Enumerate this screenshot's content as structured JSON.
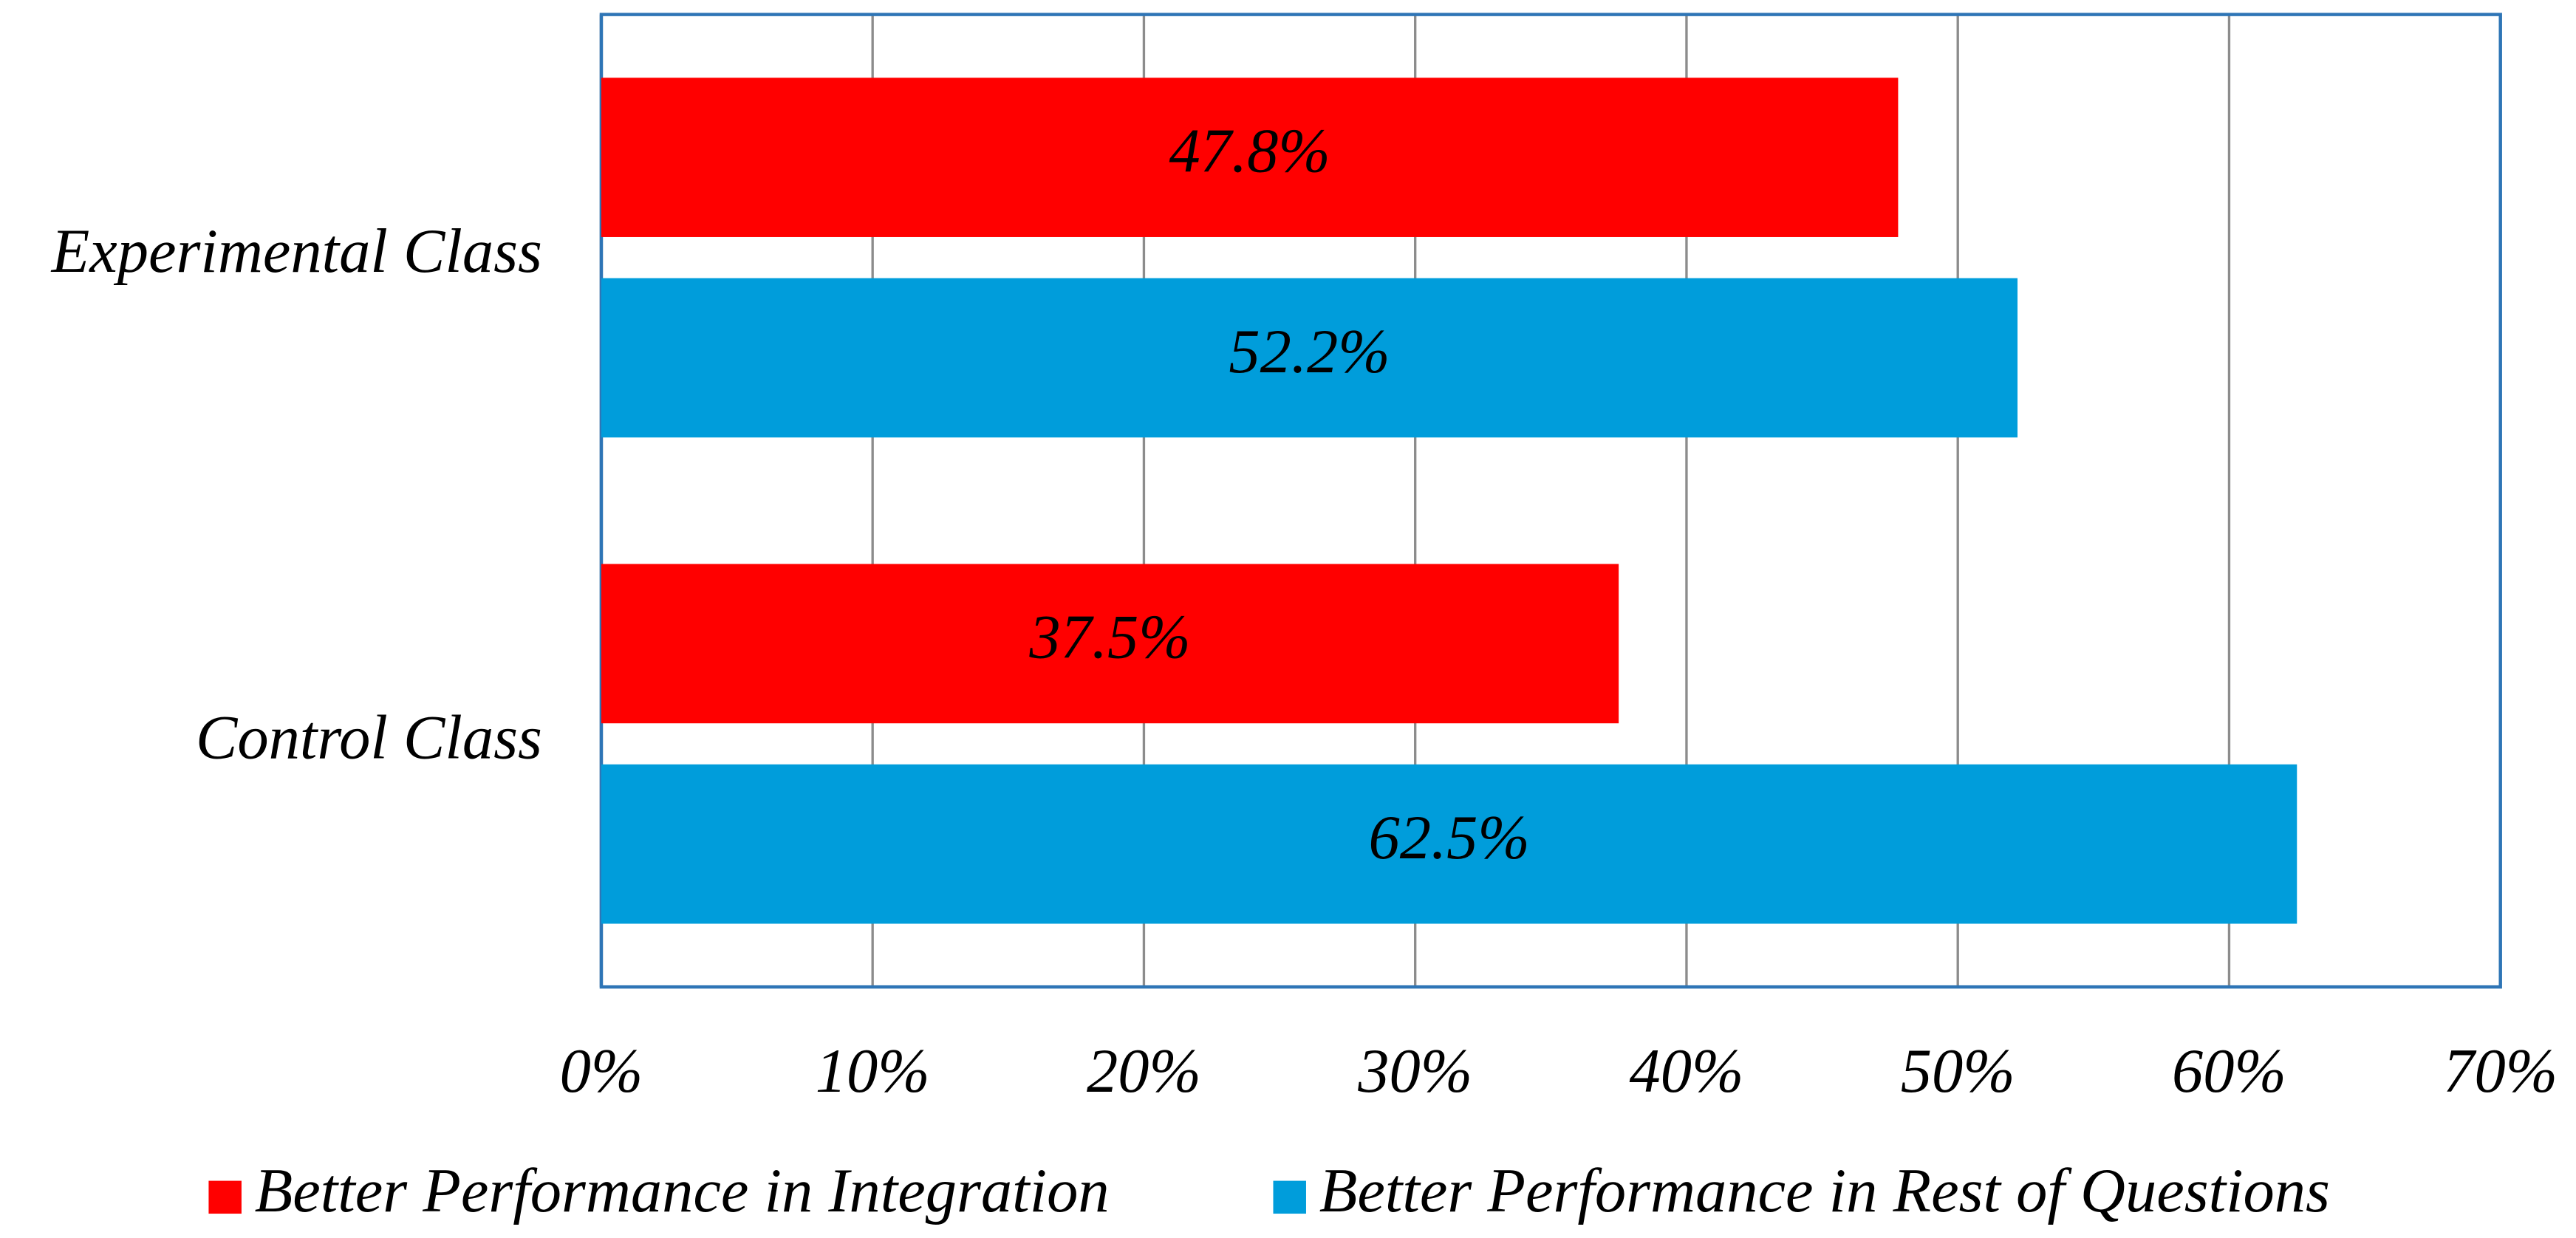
{
  "chart_data": {
    "type": "bar",
    "orientation": "horizontal",
    "categories": [
      "Experimental Class",
      "Control Class"
    ],
    "series": [
      {
        "name": "Better Performance in Integration",
        "color": "#ff0000",
        "values": [
          47.8,
          37.5
        ],
        "value_labels": [
          "47.8%",
          "37.5%"
        ]
      },
      {
        "name": "Better Performance in Rest of Questions",
        "color": "#009ddb",
        "values": [
          52.2,
          62.5
        ],
        "value_labels": [
          "52.2%",
          "62.5%"
        ]
      }
    ],
    "xlim": [
      0,
      70
    ],
    "xticks": [
      {
        "value": 0,
        "label": "0%"
      },
      {
        "value": 10,
        "label": "10%"
      },
      {
        "value": 20,
        "label": "20%"
      },
      {
        "value": 30,
        "label": "30%"
      },
      {
        "value": 40,
        "label": "40%"
      },
      {
        "value": 50,
        "label": "50%"
      },
      {
        "value": 60,
        "label": "60%"
      },
      {
        "value": 70,
        "label": "70%"
      }
    ],
    "grid": true,
    "legend": "bottom"
  }
}
